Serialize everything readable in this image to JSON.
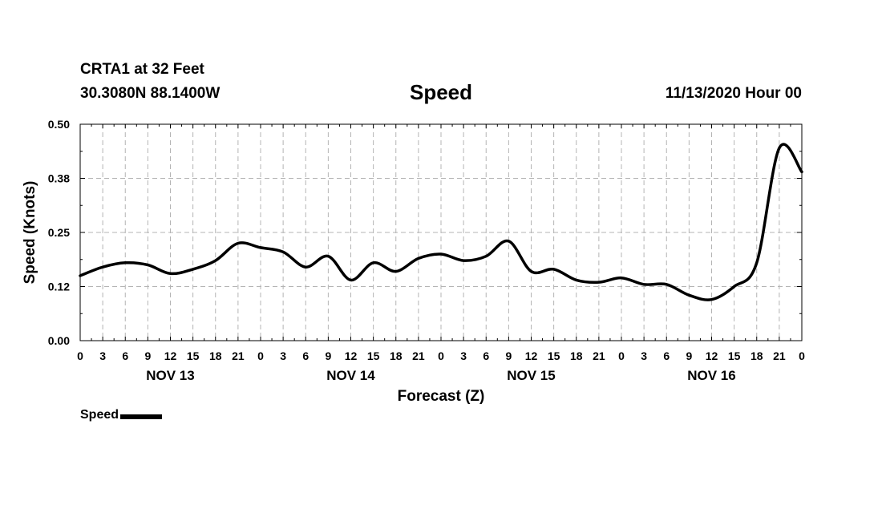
{
  "header": {
    "station": "CRTA1 at 32 Feet",
    "coords": "30.3080N 88.1400W",
    "title": "Speed",
    "date": "11/13/2020 Hour 00"
  },
  "chart_data": {
    "type": "line",
    "title": "Speed",
    "xlabel": "Forecast (Z)",
    "ylabel": "Speed (Knots)",
    "ylim": [
      0,
      0.5
    ],
    "yticks": [
      "0.00",
      "0.12",
      "0.25",
      "0.38",
      "0.50"
    ],
    "ytick_values": [
      0,
      0.125,
      0.25,
      0.375,
      0.5
    ],
    "xlim": [
      0,
      96
    ],
    "xtick_step_hours": 3,
    "xtick_labels": [
      "0",
      "3",
      "6",
      "9",
      "12",
      "15",
      "18",
      "21",
      "0",
      "3",
      "6",
      "9",
      "12",
      "15",
      "18",
      "21",
      "0",
      "3",
      "6",
      "9",
      "12",
      "15",
      "18",
      "21",
      "0",
      "3",
      "6",
      "9",
      "12",
      "15",
      "18",
      "21",
      "0"
    ],
    "day_labels": [
      "NOV 13",
      "NOV 14",
      "NOV 15",
      "NOV 16"
    ],
    "grid": true,
    "legend_position": "bottom-left",
    "series": [
      {
        "name": "Speed",
        "color": "#000000",
        "x": [
          0,
          3,
          6,
          9,
          12,
          15,
          18,
          21,
          24,
          27,
          30,
          33,
          36,
          39,
          42,
          45,
          48,
          51,
          54,
          57,
          60,
          63,
          66,
          69,
          72,
          75,
          78,
          81,
          84,
          87,
          90,
          93,
          96
        ],
        "y": [
          0.15,
          0.17,
          0.18,
          0.175,
          0.155,
          0.165,
          0.185,
          0.225,
          0.215,
          0.205,
          0.17,
          0.195,
          0.14,
          0.18,
          0.16,
          0.19,
          0.2,
          0.185,
          0.195,
          0.23,
          0.16,
          0.165,
          0.14,
          0.135,
          0.145,
          0.13,
          0.13,
          0.105,
          0.095,
          0.125,
          0.18,
          0.445,
          0.39
        ]
      }
    ]
  }
}
